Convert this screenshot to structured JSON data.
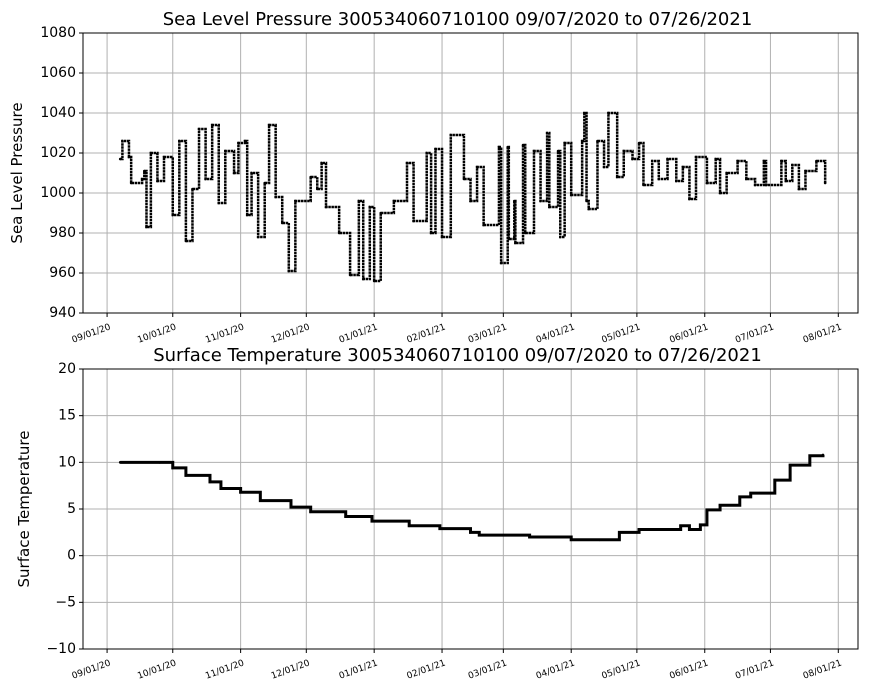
{
  "chart_data": [
    {
      "type": "scatter",
      "title": "Sea Level Pressure 300534060710100  09/07/2020 to 07/26/2021",
      "xlabel": "",
      "ylabel": "Sea Level Pressure",
      "x_units": "days since 09/07/2020",
      "xlim": [
        -17,
        337
      ],
      "ylim": [
        940,
        1080
      ],
      "yticks": [
        940,
        960,
        980,
        1000,
        1020,
        1040,
        1060,
        1080
      ],
      "ytick_labels": [
        "940",
        "960",
        "980",
        "1000",
        "1020",
        "1040",
        "1060",
        "1080"
      ],
      "xticks": [
        -6,
        24,
        55,
        85,
        116,
        147,
        175,
        206,
        236,
        267,
        297,
        328
      ],
      "xtick_labels": [
        "09/01/20",
        "10/01/20",
        "11/01/20",
        "12/01/20",
        "01/01/21",
        "02/01/21",
        "03/01/21",
        "04/01/21",
        "05/01/21",
        "06/01/21",
        "07/01/21",
        "08/01/21"
      ],
      "grid": true,
      "color": "#000000",
      "x": [
        0,
        1,
        4,
        5,
        10,
        11,
        12,
        14,
        17,
        20,
        24,
        27,
        30,
        33,
        36,
        39,
        42,
        45,
        48,
        52,
        54,
        57,
        58,
        60,
        63,
        66,
        68,
        71,
        74,
        77,
        80,
        87,
        90,
        92,
        94,
        100,
        105,
        109,
        111,
        114,
        116,
        119,
        125,
        131,
        134,
        140,
        142,
        144,
        147,
        151,
        157,
        160,
        163,
        166,
        173,
        174,
        177,
        177.5,
        180,
        180.5,
        184,
        185,
        189,
        192,
        195,
        196,
        200,
        201,
        203,
        206,
        211,
        212,
        213,
        214,
        218,
        221,
        223,
        227,
        230,
        234,
        237,
        239,
        243,
        246,
        250,
        254,
        257,
        260,
        263,
        268,
        272,
        274,
        277,
        282,
        286,
        290,
        294,
        295,
        302,
        304,
        307,
        310,
        313,
        318,
        322
      ],
      "y": [
        1017,
        1026,
        1018,
        1005,
        1007,
        1011,
        983,
        1020,
        1006,
        1018,
        989,
        1026,
        976,
        1002,
        1032,
        1007,
        1034,
        995,
        1021,
        1010,
        1025,
        1026,
        989,
        1010,
        978,
        1005,
        1034,
        998,
        985,
        961,
        996,
        1008,
        1002,
        1015,
        993,
        980,
        959,
        996,
        957,
        993,
        956,
        990,
        996,
        1015,
        986,
        1020,
        980,
        1022,
        978,
        1029,
        1007,
        996,
        1013,
        984,
        1023,
        965,
        1023,
        977,
        996,
        975,
        1024,
        980,
        1021,
        996,
        1030,
        993,
        1021,
        978,
        1025,
        999,
        1026,
        1040,
        996,
        992,
        1026,
        1013,
        1040,
        1008,
        1021,
        1017,
        1025,
        1004,
        1016,
        1007,
        1017,
        1006,
        1013,
        997,
        1018,
        1005,
        1017,
        1000,
        1010,
        1016,
        1007,
        1004,
        1016,
        1004,
        1016,
        1006,
        1014,
        1002,
        1011,
        1016,
        1005
      ]
    },
    {
      "type": "scatter",
      "title": "Surface Temperature 300534060710100  09/07/2020 to 07/26/2021",
      "xlabel": "",
      "ylabel": "Surface Temperature",
      "x_units": "days since 09/07/2020",
      "xlim": [
        -17,
        337
      ],
      "ylim": [
        -10,
        20
      ],
      "yticks": [
        -10,
        -5,
        0,
        5,
        10,
        15,
        20
      ],
      "ytick_labels": [
        "−10",
        "−5",
        "0",
        "5",
        "10",
        "15",
        "20"
      ],
      "xticks": [
        -6,
        24,
        55,
        85,
        116,
        147,
        175,
        206,
        236,
        267,
        297,
        328
      ],
      "xtick_labels": [
        "09/01/20",
        "10/01/20",
        "11/01/20",
        "12/01/20",
        "01/01/21",
        "02/01/21",
        "03/01/21",
        "04/01/21",
        "05/01/21",
        "06/01/21",
        "07/01/21",
        "08/01/21"
      ],
      "grid": true,
      "color": "#000000",
      "x": [
        0,
        18,
        24,
        30,
        41,
        46,
        55,
        64,
        78,
        87,
        103,
        115,
        132,
        146,
        160,
        164,
        187,
        206,
        219,
        228,
        237,
        247,
        256,
        260,
        265,
        268,
        274,
        283,
        288,
        292,
        299,
        306,
        311,
        315,
        321
      ],
      "y": [
        10.0,
        10.0,
        9.4,
        8.6,
        7.9,
        7.2,
        6.8,
        5.9,
        5.2,
        4.7,
        4.2,
        3.7,
        3.2,
        2.9,
        2.5,
        2.2,
        2.0,
        1.7,
        1.7,
        2.5,
        2.8,
        2.8,
        3.2,
        2.8,
        3.3,
        4.9,
        5.4,
        6.3,
        6.7,
        6.7,
        8.1,
        9.7,
        9.7,
        10.7,
        10.8
      ]
    }
  ]
}
